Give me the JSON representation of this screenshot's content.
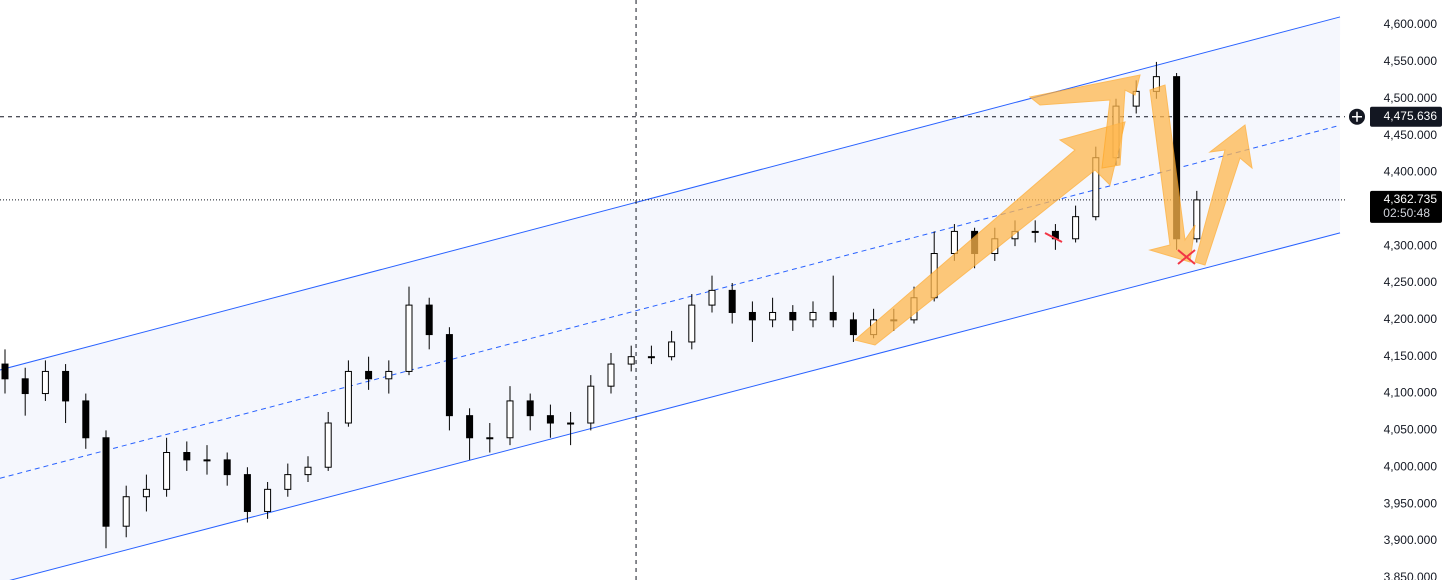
{
  "chart_data": {
    "type": "candlestick",
    "open": [
      4140,
      4120,
      4100,
      4130,
      4090,
      4040,
      3920,
      3960,
      3970,
      4020,
      4010,
      4010,
      3990,
      3940,
      3970,
      3990,
      4000,
      4060,
      4130,
      4120,
      4130,
      4220,
      4180,
      4070,
      4040,
      4040,
      4090,
      4070,
      4060,
      4060,
      4110,
      4140,
      4150,
      4150,
      4170,
      4220,
      4240,
      4210,
      4200,
      4210,
      4200,
      4210,
      4200,
      4180,
      4200,
      4200,
      4230,
      4290,
      4320,
      4290,
      4310,
      4320,
      4320,
      4310,
      4340,
      4420,
      4490,
      4510,
      4530,
      4310
    ],
    "high": [
      4160,
      4135,
      4145,
      4140,
      4100,
      4050,
      3975,
      3990,
      4040,
      4035,
      4030,
      4020,
      4000,
      3980,
      4005,
      4015,
      4075,
      4145,
      4150,
      4145,
      4245,
      4230,
      4190,
      4080,
      4060,
      4110,
      4100,
      4085,
      4075,
      4125,
      4155,
      4165,
      4165,
      4185,
      4235,
      4260,
      4250,
      4225,
      4230,
      4220,
      4225,
      4260,
      4210,
      4215,
      4215,
      4245,
      4320,
      4330,
      4325,
      4325,
      4335,
      4335,
      4330,
      4355,
      4435,
      4500,
      4525,
      4550,
      4535,
      4375
    ],
    "low": [
      4100,
      4070,
      4090,
      4060,
      4025,
      3890,
      3905,
      3940,
      3960,
      3995,
      3990,
      3975,
      3925,
      3930,
      3960,
      3980,
      3995,
      4055,
      4105,
      4100,
      4125,
      4160,
      4050,
      4010,
      4020,
      4030,
      4050,
      4040,
      4030,
      4050,
      4100,
      4130,
      4140,
      4145,
      4160,
      4210,
      4195,
      4170,
      4190,
      4185,
      4190,
      4190,
      4170,
      4175,
      4185,
      4195,
      4225,
      4280,
      4270,
      4280,
      4300,
      4305,
      4295,
      4305,
      4335,
      4410,
      4480,
      4500,
      4295,
      4305
    ],
    "close": [
      4120,
      4100,
      4130,
      4090,
      4040,
      3920,
      3960,
      3970,
      4020,
      4010,
      4010,
      3990,
      3940,
      3970,
      3990,
      4000,
      4060,
      4130,
      4120,
      4130,
      4220,
      4180,
      4070,
      4040,
      4040,
      4090,
      4070,
      4060,
      4060,
      4110,
      4140,
      4150,
      4150,
      4170,
      4220,
      4240,
      4210,
      4200,
      4210,
      4200,
      4210,
      4200,
      4180,
      4200,
      4200,
      4230,
      4290,
      4320,
      4290,
      4310,
      4320,
      4320,
      4310,
      4340,
      4420,
      4490,
      4510,
      4530,
      4310,
      4362.735
    ],
    "ylim": [
      3847,
      4634
    ],
    "yticks": [
      {
        "value": 3850,
        "label": "3,850.000"
      },
      {
        "value": 3900,
        "label": "3,900.000"
      },
      {
        "value": 3950,
        "label": "3,950.000"
      },
      {
        "value": 4000,
        "label": "4,000.000"
      },
      {
        "value": 4050,
        "label": "4,050.000"
      },
      {
        "value": 4100,
        "label": "4,100.000"
      },
      {
        "value": 4150,
        "label": "4,150.000"
      },
      {
        "value": 4200,
        "label": "4,200.000"
      },
      {
        "value": 4250,
        "label": "4,250.000"
      },
      {
        "value": 4300,
        "label": "4,300.000"
      },
      {
        "value": 4350,
        "label": "4,350.000"
      },
      {
        "value": 4400,
        "label": "4,400.000"
      },
      {
        "value": 4450,
        "label": "4,450.000"
      },
      {
        "value": 4500,
        "label": "4,500.000"
      },
      {
        "value": 4550,
        "label": "4,550.000"
      },
      {
        "value": 4600,
        "label": "4,600.000"
      }
    ],
    "channel": {
      "x": [
        -0.25,
        66.09
      ],
      "upper": [
        4132,
        4611
      ],
      "middle": [
        3985,
        4464
      ],
      "lower": [
        3843,
        4318
      ],
      "color": "#2962ff"
    },
    "crosshair": {
      "x": 31.24,
      "price": {
        "value": 4475.636,
        "label": "4,475.636"
      }
    },
    "last_price": {
      "value": 4362.735,
      "label": "4,362.735"
    },
    "countdown": "02:50:48"
  }
}
